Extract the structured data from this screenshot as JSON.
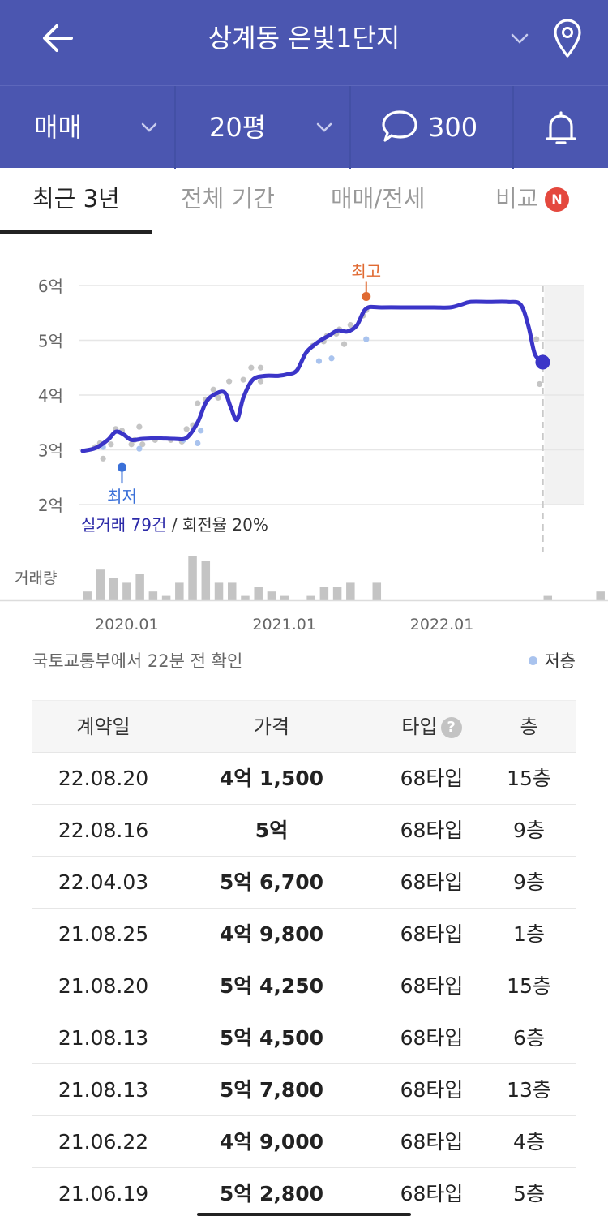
{
  "header": {
    "title": "상계동 은빛1단지"
  },
  "filters": {
    "deal_type": "매매",
    "size": "20평",
    "comments": "300"
  },
  "tabs": [
    {
      "label": "최근 3년",
      "active": true
    },
    {
      "label": "전체 기간",
      "active": false
    },
    {
      "label": "매매/전세",
      "active": false
    },
    {
      "label": "비교",
      "active": false
    }
  ],
  "new_badge": "N",
  "chart_data": {
    "type": "line",
    "y_tick_labels": [
      "6억",
      "5억",
      "4억",
      "3억",
      "2억"
    ],
    "y_ticks": [
      6,
      5,
      4,
      3,
      2
    ],
    "ylim": [
      2,
      6
    ],
    "x_tick_labels": [
      "2020.01",
      "2021.01",
      "2022.01"
    ],
    "x_ticks": [
      2020.0,
      2021.0,
      2022.0
    ],
    "xlim": [
      2019.7,
      2022.9
    ],
    "series": [
      {
        "values": [
          [
            2019.72,
            2.98
          ],
          [
            2019.8,
            3.03
          ],
          [
            2019.88,
            3.18
          ],
          [
            2019.93,
            3.33
          ],
          [
            2019.98,
            3.28
          ],
          [
            2020.03,
            3.18
          ],
          [
            2020.1,
            3.2
          ],
          [
            2020.2,
            3.21
          ],
          [
            2020.3,
            3.2
          ],
          [
            2020.38,
            3.22
          ],
          [
            2020.45,
            3.5
          ],
          [
            2020.5,
            3.85
          ],
          [
            2020.55,
            4.0
          ],
          [
            2020.62,
            4.05
          ],
          [
            2020.66,
            3.78
          ],
          [
            2020.7,
            3.55
          ],
          [
            2020.74,
            3.95
          ],
          [
            2020.8,
            4.28
          ],
          [
            2020.88,
            4.35
          ],
          [
            2020.96,
            4.35
          ],
          [
            2021.02,
            4.38
          ],
          [
            2021.08,
            4.45
          ],
          [
            2021.14,
            4.78
          ],
          [
            2021.22,
            4.98
          ],
          [
            2021.28,
            5.08
          ],
          [
            2021.34,
            5.18
          ],
          [
            2021.4,
            5.16
          ],
          [
            2021.46,
            5.27
          ],
          [
            2021.52,
            5.58
          ],
          [
            2021.62,
            5.6
          ],
          [
            2021.8,
            5.6
          ],
          [
            2021.95,
            5.6
          ],
          [
            2022.05,
            5.6
          ],
          [
            2022.12,
            5.65
          ],
          [
            2022.18,
            5.7
          ],
          [
            2022.3,
            5.7
          ],
          [
            2022.42,
            5.7
          ],
          [
            2022.5,
            5.65
          ],
          [
            2022.55,
            5.25
          ],
          [
            2022.59,
            4.75
          ],
          [
            2022.64,
            4.6
          ]
        ]
      }
    ],
    "points_regular": [
      [
        2019.8,
        3.05
      ],
      [
        2019.83,
        3.12
      ],
      [
        2019.85,
        2.84
      ],
      [
        2019.9,
        3.1
      ],
      [
        2019.93,
        3.38
      ],
      [
        2019.97,
        3.35
      ],
      [
        2020.03,
        3.1
      ],
      [
        2020.05,
        3.18
      ],
      [
        2020.08,
        3.42
      ],
      [
        2020.1,
        3.1
      ],
      [
        2020.18,
        3.18
      ],
      [
        2020.28,
        3.18
      ],
      [
        2020.35,
        3.15
      ],
      [
        2020.38,
        3.38
      ],
      [
        2020.42,
        3.45
      ],
      [
        2020.45,
        3.85
      ],
      [
        2020.5,
        3.92
      ],
      [
        2020.55,
        4.1
      ],
      [
        2020.58,
        3.95
      ],
      [
        2020.65,
        4.25
      ],
      [
        2020.74,
        4.28
      ],
      [
        2020.79,
        4.5
      ],
      [
        2020.85,
        4.5
      ],
      [
        2020.85,
        4.25
      ],
      [
        2021.18,
        4.9
      ],
      [
        2021.25,
        4.98
      ],
      [
        2021.27,
        5.08
      ],
      [
        2021.33,
        5.12
      ],
      [
        2021.35,
        5.2
      ],
      [
        2021.38,
        4.93
      ],
      [
        2021.42,
        5.28
      ],
      [
        2021.5,
        5.45
      ],
      [
        2021.52,
        5.55
      ],
      [
        2022.6,
        5.02
      ],
      [
        2022.62,
        4.2
      ]
    ],
    "points_low_floor": [
      [
        2019.85,
        3.05
      ],
      [
        2020.08,
        3.02
      ],
      [
        2020.36,
        3.18
      ],
      [
        2020.45,
        3.12
      ],
      [
        2020.47,
        3.35
      ],
      [
        2021.22,
        4.62
      ],
      [
        2021.3,
        4.67
      ],
      [
        2021.52,
        5.02
      ]
    ],
    "volume": {
      "values": [
        2,
        7,
        5,
        4,
        6,
        2,
        1,
        4,
        10,
        9,
        4,
        4,
        1,
        3,
        2,
        1,
        0,
        1,
        3,
        3,
        4,
        0,
        4,
        0,
        0,
        0,
        0,
        0,
        0,
        0,
        0,
        0,
        0,
        0,
        0,
        1,
        0,
        0,
        0,
        2
      ],
      "start": 2019.75,
      "step": 0.0835
    },
    "label_y": "거래량",
    "high_label": "최고",
    "low_label": "최저",
    "high_at": [
      2021.52,
      5.8
    ],
    "low_at": [
      2019.97,
      2.68
    ],
    "current_at": [
      2022.64,
      4.6
    ],
    "forecast_start": 2022.65,
    "colors": {
      "line": "#3b35c8",
      "regular": "#c5c5c5",
      "low": "#a9c3ee",
      "high": "#e06a32",
      "low_marker": "#3a70d8",
      "volume": "#c4c4c4"
    }
  },
  "summary": {
    "deals": "실거래 79건",
    "turnover": " / 회전율 20%"
  },
  "source_text": "국토교통부에서 22분 전 확인",
  "legend_low": "저층",
  "table": {
    "headers": [
      "계약일",
      "가격",
      "타입",
      "층"
    ],
    "help": "?",
    "rows": [
      [
        "22.08.20",
        "4억 1,500",
        "68타입",
        "15층"
      ],
      [
        "22.08.16",
        "5억",
        "68타입",
        "9층"
      ],
      [
        "22.04.03",
        "5억 6,700",
        "68타입",
        "9층"
      ],
      [
        "21.08.25",
        "4억 9,800",
        "68타입",
        "1층"
      ],
      [
        "21.08.20",
        "5억 4,250",
        "68타입",
        "15층"
      ],
      [
        "21.08.13",
        "5억 4,500",
        "68타입",
        "6층"
      ],
      [
        "21.08.13",
        "5억 7,800",
        "68타입",
        "13층"
      ],
      [
        "21.06.22",
        "4억 9,000",
        "68타입",
        "4층"
      ],
      [
        "21.06.19",
        "5억 2,800",
        "68타입",
        "5층"
      ]
    ]
  }
}
